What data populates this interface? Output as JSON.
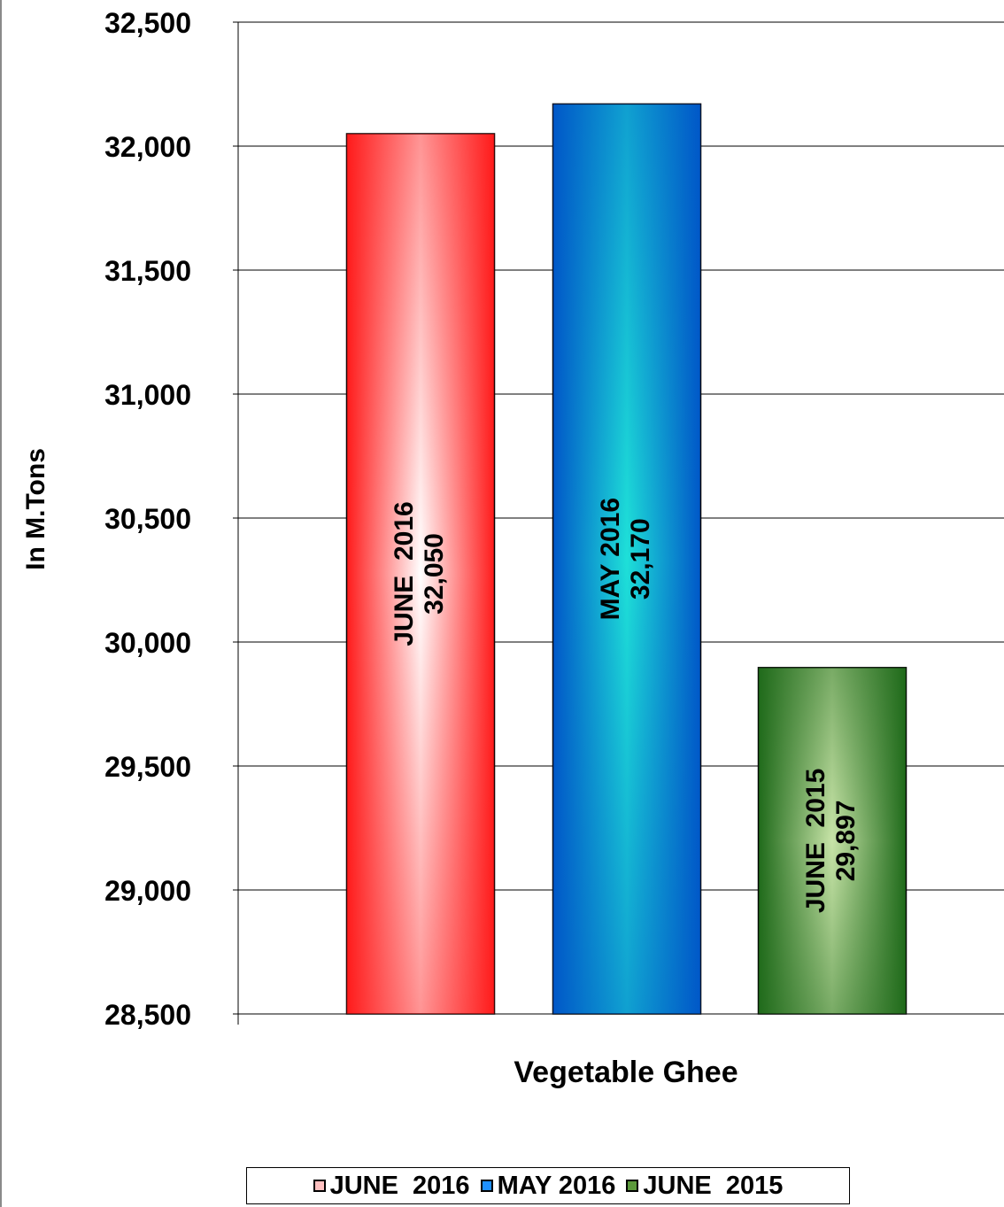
{
  "chart_data": {
    "type": "bar",
    "title": "",
    "xlabel": "Vegetable Ghee",
    "ylabel": "In M.Tons",
    "ylim": [
      28500,
      32500
    ],
    "yticks": [
      28500,
      29000,
      29500,
      30000,
      30500,
      31000,
      31500,
      32000,
      32500
    ],
    "ytick_labels": [
      "28,500",
      "29,000",
      "29,500",
      "30,000",
      "30,500",
      "31,000",
      "31,500",
      "32,000",
      "32,500"
    ],
    "grid": true,
    "legend_position": "bottom",
    "categories": [
      "Vegetable Ghee"
    ],
    "series": [
      {
        "name": "JUNE  2016",
        "values": [
          32050
        ],
        "label_line1": "JUNE  2016",
        "label_line2": "32,050",
        "edge_color": "#ff1a1a",
        "center_color": "#ffffff",
        "swatch_color": "#ffc0c0"
      },
      {
        "name": "MAY 2016",
        "values": [
          32170
        ],
        "label_line1": "MAY 2016",
        "label_line2": "32,170",
        "edge_color": "#0057c8",
        "center_color": "#1ee0d8",
        "swatch_color": "#1e90ff"
      },
      {
        "name": "JUNE  2015",
        "values": [
          29897
        ],
        "label_line1": "JUNE  2015",
        "label_line2": "29,897",
        "edge_color": "#1f6a1a",
        "center_color": "#c8e4a8",
        "swatch_color": "#5c9a3c"
      }
    ]
  }
}
